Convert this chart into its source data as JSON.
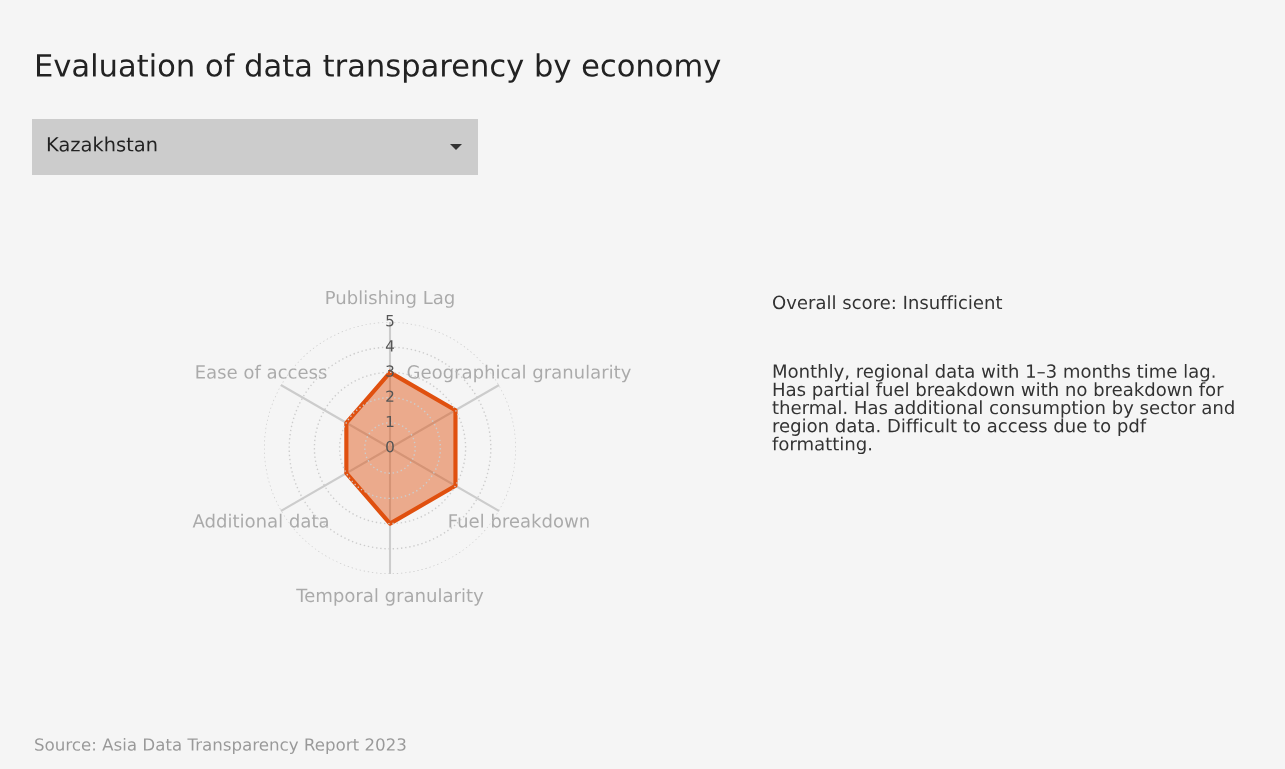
{
  "chart_data": {
    "type": "radar",
    "title": "Evaluation of data transparency by economy",
    "categories": [
      "Publishing Lag",
      "Geographical granularity",
      "Fuel breakdown",
      "Temporal granularity",
      "Additional data",
      "Ease of access"
    ],
    "series": [
      {
        "color": "#e0500f",
        "values": [
          3,
          3,
          3,
          3,
          2,
          2
        ]
      }
    ],
    "ylim": [
      0,
      5
    ],
    "yticks": [
      0,
      1,
      2,
      3,
      4,
      5
    ],
    "grid": true,
    "legend": false,
    "annotations": [
      "Kazakhstan",
      "Overall score: Insufficient",
      "Monthly, regional data with 1–3 months time lag. Has partial fuel breakdown with no breakdown for thermal. Has additional consumption by sector and region data. Difficult to access due to pdf formatting.",
      "Source: Asia Data Transparency Report 2023"
    ]
  }
}
